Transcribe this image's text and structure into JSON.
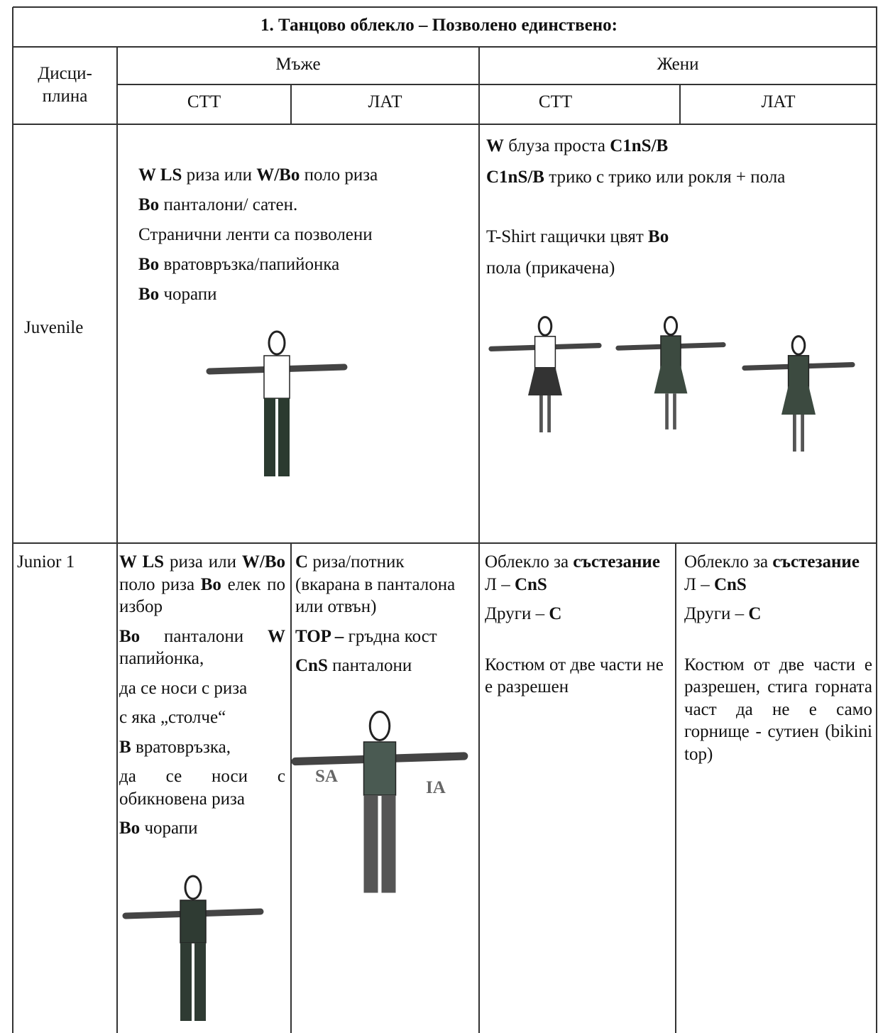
{
  "title": "1. Танцово облекло  – Позволено единствено:",
  "header": {
    "discipline": [
      "Дисци-",
      "плина"
    ],
    "men": "Мъже",
    "women": "Жени",
    "men_stt": "СТТ",
    "men_lat": "ЛАТ",
    "women_stt": "СТТ",
    "women_lat": "ЛАТ"
  },
  "rows": [
    {
      "label": "Juvenile",
      "men": [
        [
          {
            "text": "W LS",
            "bold": true
          },
          {
            "text": " риза или "
          },
          {
            "text": "W/Bo",
            "bold": true
          },
          {
            "text": " поло риза"
          }
        ],
        [
          {
            "text": "Bo",
            "bold": true
          },
          {
            "text": " панталони/ сатен."
          }
        ],
        [
          {
            "text": "Странични ленти са позволени"
          }
        ],
        [
          {
            "text": "Bo",
            "bold": true
          },
          {
            "text": " вратовръзка/папийонка"
          }
        ],
        [
          {
            "text": "Bo",
            "bold": true
          },
          {
            "text": " чорапи"
          }
        ]
      ],
      "women": [
        [
          {
            "text": "W",
            "bold": true
          },
          {
            "text": " блуза   проста "
          },
          {
            "text": "C1nS/B",
            "bold": true
          }
        ],
        [
          {
            "text": "C1nS/B",
            "bold": true
          },
          {
            "text": " трико с трико или рокля + пола"
          }
        ],
        [
          {
            "text": "T-Shirt гащички цвят "
          },
          {
            "text": "Bo",
            "bold": true
          }
        ],
        [
          {
            "text": "пола (прикачена)"
          }
        ]
      ]
    },
    {
      "label": "Junior 1",
      "men_stt": [
        [
          {
            "text": "W  LS",
            "bold": true
          },
          {
            "text": " риза или "
          },
          {
            "text": "W/Bo",
            "bold": true
          },
          {
            "text": " поло риза "
          },
          {
            "text": "Bo",
            "bold": true
          },
          {
            "text": " елек по избор"
          }
        ],
        [
          {
            "text": "Bo",
            "bold": true
          },
          {
            "text": " панталони "
          },
          {
            "text": "W",
            "bold": true
          },
          {
            "text": " папийонка,"
          }
        ],
        [
          {
            "text": "да се носи с риза"
          }
        ],
        [
          {
            "text": "с яка „столче“"
          }
        ],
        [
          {
            "text": "B",
            "bold": true
          },
          {
            "text": " вратовръзка,"
          }
        ],
        [
          {
            "text": "да се носи с обикновена риза"
          }
        ],
        [
          {
            "text": "Bo",
            "bold": true
          },
          {
            "text": " чорапи"
          }
        ]
      ],
      "men_lat": [
        [
          {
            "text": "C",
            "bold": true
          },
          {
            "text": " риза/потник (вкарана в панталона или отвън)"
          }
        ],
        [
          {
            "text": "TOP –",
            "bold": true
          },
          {
            "text": " гръдна кост"
          }
        ],
        [
          {
            "text": "CnS",
            "bold": true
          },
          {
            "text": " панталони"
          }
        ]
      ],
      "figure_labels": [
        "SA",
        "IA"
      ],
      "women_stt": [
        [
          {
            "text": "Облекло  за "
          },
          {
            "text": "състезание",
            "bold": true
          }
        ],
        [
          {
            "text": "Л – "
          },
          {
            "text": "CnS",
            "bold": true
          }
        ],
        [
          {
            "text": "Други – "
          },
          {
            "text": "C",
            "bold": true
          }
        ],
        [
          {
            "text": "Костюм от две части не е разрешен"
          }
        ]
      ],
      "women_lat": [
        [
          {
            "text": "Облекло  за "
          },
          {
            "text": "състезание",
            "bold": true
          }
        ],
        [
          {
            "text": "Л – "
          },
          {
            "text": "CnS",
            "bold": true
          }
        ],
        [
          {
            "text": "Други – "
          },
          {
            "text": "C",
            "bold": true
          }
        ],
        [
          {
            "text": "Костюм от две части е разрешен, стига горната част да не е само горнище - сутиен (bikini top)"
          }
        ]
      ]
    }
  ]
}
